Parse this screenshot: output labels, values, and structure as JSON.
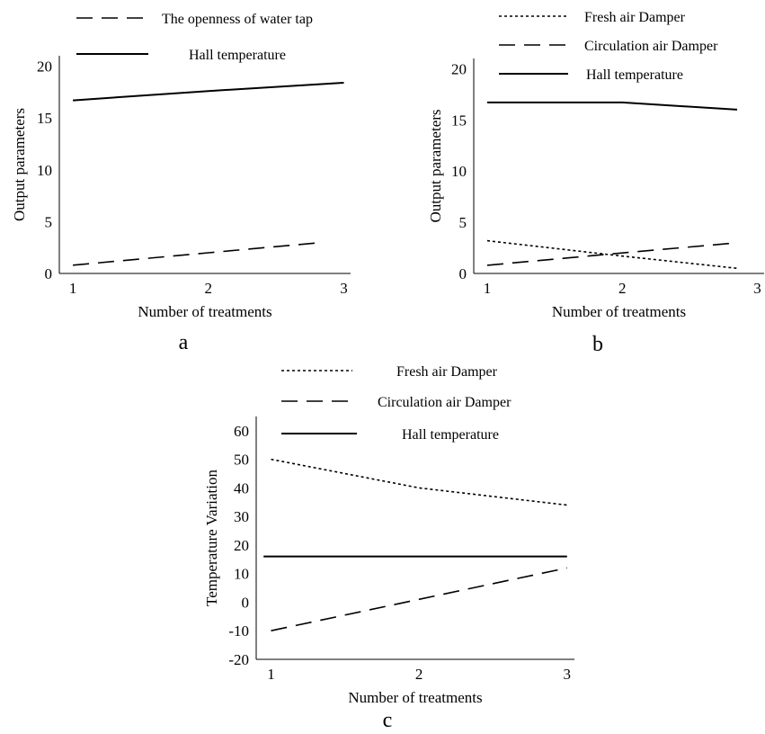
{
  "chart_data": [
    {
      "panel": "a",
      "type": "line",
      "xlabel": "Number of treatments",
      "ylabel": "Output parameters",
      "x": [
        1,
        2,
        3
      ],
      "xlim": [
        0.9,
        3.05
      ],
      "ylim": [
        0,
        21
      ],
      "yticks": [
        0,
        5,
        10,
        15,
        20
      ],
      "legend_position": "top",
      "series": [
        {
          "name": "The openness of water tap",
          "style": "dashed",
          "x": [
            1,
            2,
            2.85
          ],
          "values": [
            0.8,
            2.0,
            3.0
          ]
        },
        {
          "name": "Hall temperature",
          "style": "solid",
          "x": [
            1,
            2,
            3
          ],
          "values": [
            16.7,
            17.6,
            18.4
          ]
        }
      ]
    },
    {
      "panel": "b",
      "type": "line",
      "xlabel": "Number of treatments",
      "ylabel": "Output parameters",
      "x": [
        1,
        2,
        3
      ],
      "xlim": [
        0.9,
        3.05
      ],
      "ylim": [
        0,
        21
      ],
      "yticks": [
        0,
        5,
        10,
        15,
        20
      ],
      "legend_position": "top",
      "series": [
        {
          "name": "Fresh air Damper",
          "style": "dotted",
          "x": [
            1,
            2,
            2.85
          ],
          "values": [
            3.2,
            1.7,
            0.5
          ]
        },
        {
          "name": "Circulation air Damper",
          "style": "dashed",
          "x": [
            1,
            2,
            2.85
          ],
          "values": [
            0.8,
            2.0,
            3.0
          ]
        },
        {
          "name": "Hall temperature",
          "style": "solid",
          "x": [
            1,
            2,
            2.85
          ],
          "values": [
            16.7,
            16.7,
            16.0
          ]
        }
      ]
    },
    {
      "panel": "c",
      "type": "line",
      "xlabel": "Number of treatments",
      "ylabel": "Temperature Variation",
      "x": [
        1,
        2,
        3
      ],
      "xlim": [
        0.9,
        3.05
      ],
      "ylim": [
        -20,
        65
      ],
      "yticks": [
        -20,
        -10,
        0,
        10,
        20,
        30,
        40,
        50,
        60
      ],
      "legend_position": "top",
      "series": [
        {
          "name": "Fresh air Damper",
          "style": "dotted",
          "x": [
            1,
            2,
            3
          ],
          "values": [
            50,
            40,
            34
          ]
        },
        {
          "name": "Circulation air Damper",
          "style": "dashed",
          "x": [
            1,
            2,
            3
          ],
          "values": [
            -10,
            1,
            12
          ]
        },
        {
          "name": "Hall temperature",
          "style": "solid",
          "x": [
            0.95,
            2,
            3
          ],
          "values": [
            16,
            16,
            16
          ]
        }
      ]
    }
  ]
}
